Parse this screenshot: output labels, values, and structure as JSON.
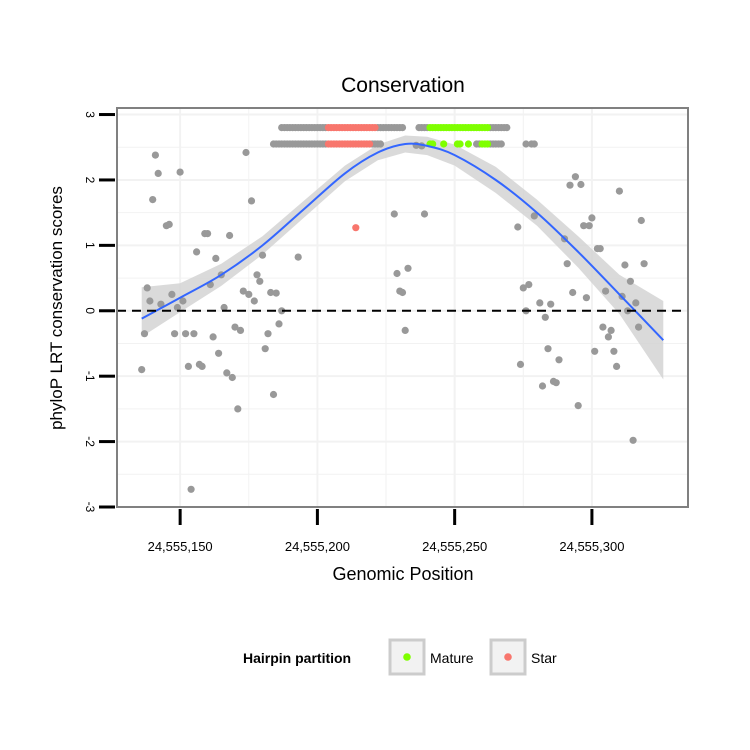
{
  "colors": {
    "point": "#999999",
    "mature": "#7FFF00",
    "star": "#F8766D",
    "smooth_line": "#3366FF",
    "ribbon": "#D3D3D3",
    "panel_border": "#808080",
    "grid": "#F2F2F2",
    "zero_line": "#000000"
  },
  "chart_data": {
    "type": "scatter",
    "title": "Conservation",
    "xlabel": "Genomic Position",
    "ylabel": "phyloP LRT conservation scores",
    "xlim": [
      24555127,
      24555335
    ],
    "ylim": [
      -3,
      3.1
    ],
    "x_ticks": [
      24555150,
      24555200,
      24555250,
      24555300
    ],
    "x_tick_labels": [
      "24,555,150",
      "24,555,200",
      "24,555,250",
      "24,555,300"
    ],
    "y_ticks": [
      -3,
      -2,
      -1,
      0,
      1,
      2,
      3
    ],
    "y_tick_labels": [
      "-3",
      "-2",
      "-1",
      "0",
      "1",
      "2",
      "3"
    ],
    "hline": 0,
    "legend": {
      "title": "Hairpin partition",
      "position": "bottom",
      "items": [
        {
          "label": "Mature",
          "color_key": "mature"
        },
        {
          "label": "Star",
          "color_key": "star"
        }
      ]
    },
    "smooth": {
      "x": [
        24555136,
        24555150,
        24555165,
        24555180,
        24555195,
        24555210,
        24555222,
        24555232,
        24555240,
        24555250,
        24555265,
        24555280,
        24555295,
        24555310,
        24555326
      ],
      "y": [
        -0.12,
        0.2,
        0.55,
        1.0,
        1.55,
        2.1,
        2.42,
        2.55,
        2.52,
        2.38,
        2.0,
        1.5,
        0.9,
        0.25,
        -0.45
      ],
      "lower": [
        -0.4,
        -0.02,
        0.38,
        0.86,
        1.42,
        1.98,
        2.3,
        2.42,
        2.38,
        2.22,
        1.8,
        1.3,
        0.66,
        -0.05,
        -1.05
      ],
      "upper": [
        0.36,
        0.42,
        0.72,
        1.14,
        1.68,
        2.22,
        2.54,
        2.68,
        2.66,
        2.54,
        2.2,
        1.7,
        1.14,
        0.55,
        0.15
      ]
    },
    "series": [
      {
        "name": "Other",
        "color_key": "point",
        "points": [
          [
            24555136,
            -0.9
          ],
          [
            24555137,
            -0.35
          ],
          [
            24555138,
            0.35
          ],
          [
            24555139,
            0.15
          ],
          [
            24555140,
            1.7
          ],
          [
            24555141,
            2.38
          ],
          [
            24555142,
            2.1
          ],
          [
            24555143,
            0.1
          ],
          [
            24555145,
            1.3
          ],
          [
            24555146,
            1.32
          ],
          [
            24555147,
            0.25
          ],
          [
            24555148,
            -0.35
          ],
          [
            24555149,
            0.05
          ],
          [
            24555150,
            2.12
          ],
          [
            24555151,
            0.15
          ],
          [
            24555152,
            -0.35
          ],
          [
            24555153,
            -0.85
          ],
          [
            24555154,
            -2.73
          ],
          [
            24555155,
            -0.35
          ],
          [
            24555156,
            0.9
          ],
          [
            24555157,
            -0.82
          ],
          [
            24555158,
            -0.85
          ],
          [
            24555159,
            1.18
          ],
          [
            24555160,
            1.18
          ],
          [
            24555161,
            0.4
          ],
          [
            24555162,
            -0.4
          ],
          [
            24555163,
            0.8
          ],
          [
            24555164,
            -0.65
          ],
          [
            24555165,
            0.55
          ],
          [
            24555166,
            0.05
          ],
          [
            24555167,
            -0.95
          ],
          [
            24555168,
            1.15
          ],
          [
            24555169,
            -1.02
          ],
          [
            24555170,
            -0.25
          ],
          [
            24555171,
            -1.5
          ],
          [
            24555172,
            -0.3
          ],
          [
            24555173,
            0.3
          ],
          [
            24555174,
            2.42
          ],
          [
            24555175,
            0.25
          ],
          [
            24555176,
            1.68
          ],
          [
            24555177,
            0.15
          ],
          [
            24555178,
            0.55
          ],
          [
            24555179,
            0.45
          ],
          [
            24555180,
            0.85
          ],
          [
            24555181,
            -0.58
          ],
          [
            24555182,
            -0.35
          ],
          [
            24555183,
            0.28
          ],
          [
            24555184,
            -1.28
          ],
          [
            24555185,
            0.27
          ],
          [
            24555186,
            -0.2
          ],
          [
            24555187,
            0.0
          ],
          [
            24555193,
            0.82
          ],
          [
            24555228,
            1.48
          ],
          [
            24555229,
            0.57
          ],
          [
            24555230,
            0.3
          ],
          [
            24555231,
            0.28
          ],
          [
            24555232,
            -0.3
          ],
          [
            24555233,
            0.65
          ],
          [
            24555236,
            2.53
          ],
          [
            24555238,
            2.52
          ],
          [
            24555239,
            1.48
          ],
          [
            24555273,
            1.28
          ],
          [
            24555274,
            -0.82
          ],
          [
            24555275,
            0.35
          ],
          [
            24555276,
            0.0
          ],
          [
            24555277,
            0.4
          ],
          [
            24555279,
            1.45
          ],
          [
            24555281,
            0.12
          ],
          [
            24555282,
            -1.15
          ],
          [
            24555283,
            -0.1
          ],
          [
            24555284,
            -0.58
          ],
          [
            24555285,
            0.1
          ],
          [
            24555286,
            -1.08
          ],
          [
            24555287,
            -1.1
          ],
          [
            24555288,
            -0.75
          ],
          [
            24555290,
            1.1
          ],
          [
            24555291,
            0.72
          ],
          [
            24555292,
            1.92
          ],
          [
            24555293,
            0.28
          ],
          [
            24555294,
            2.05
          ],
          [
            24555295,
            -1.45
          ],
          [
            24555296,
            1.93
          ],
          [
            24555297,
            1.3
          ],
          [
            24555298,
            0.2
          ],
          [
            24555299,
            1.3
          ],
          [
            24555300,
            1.42
          ],
          [
            24555301,
            -0.62
          ],
          [
            24555302,
            0.95
          ],
          [
            24555303,
            0.95
          ],
          [
            24555304,
            -0.25
          ],
          [
            24555305,
            0.3
          ],
          [
            24555306,
            -0.4
          ],
          [
            24555307,
            -0.3
          ],
          [
            24555308,
            -0.62
          ],
          [
            24555309,
            -0.85
          ],
          [
            24555310,
            1.83
          ],
          [
            24555311,
            0.22
          ],
          [
            24555312,
            0.7
          ],
          [
            24555313,
            0.0
          ],
          [
            24555314,
            0.45
          ],
          [
            24555315,
            -1.98
          ],
          [
            24555316,
            0.12
          ],
          [
            24555317,
            -0.25
          ],
          [
            24555318,
            1.38
          ],
          [
            24555319,
            0.72
          ],
          [
            24555187,
            2.8
          ],
          [
            24555188,
            2.8
          ],
          [
            24555189,
            2.8
          ],
          [
            24555190,
            2.8
          ],
          [
            24555191,
            2.8
          ],
          [
            24555192,
            2.8
          ],
          [
            24555193,
            2.8
          ],
          [
            24555194,
            2.8
          ],
          [
            24555195,
            2.8
          ],
          [
            24555196,
            2.8
          ],
          [
            24555197,
            2.8
          ],
          [
            24555198,
            2.8
          ],
          [
            24555199,
            2.8
          ],
          [
            24555200,
            2.8
          ],
          [
            24555201,
            2.8
          ],
          [
            24555202,
            2.8
          ],
          [
            24555203,
            2.8
          ],
          [
            24555222,
            2.8
          ],
          [
            24555223,
            2.8
          ],
          [
            24555224,
            2.8
          ],
          [
            24555225,
            2.8
          ],
          [
            24555226,
            2.8
          ],
          [
            24555227,
            2.8
          ],
          [
            24555228,
            2.8
          ],
          [
            24555229,
            2.8
          ],
          [
            24555230,
            2.8
          ],
          [
            24555231,
            2.8
          ],
          [
            24555237,
            2.8
          ],
          [
            24555238,
            2.8
          ],
          [
            24555239,
            2.8
          ],
          [
            24555240,
            2.8
          ],
          [
            24555263,
            2.8
          ],
          [
            24555264,
            2.8
          ],
          [
            24555265,
            2.8
          ],
          [
            24555266,
            2.8
          ],
          [
            24555267,
            2.8
          ],
          [
            24555268,
            2.8
          ],
          [
            24555269,
            2.8
          ],
          [
            24555184,
            2.55
          ],
          [
            24555185,
            2.55
          ],
          [
            24555186,
            2.55
          ],
          [
            24555187,
            2.55
          ],
          [
            24555188,
            2.55
          ],
          [
            24555189,
            2.55
          ],
          [
            24555190,
            2.55
          ],
          [
            24555191,
            2.55
          ],
          [
            24555192,
            2.55
          ],
          [
            24555193,
            2.55
          ],
          [
            24555194,
            2.55
          ],
          [
            24555195,
            2.55
          ],
          [
            24555196,
            2.55
          ],
          [
            24555197,
            2.55
          ],
          [
            24555198,
            2.55
          ],
          [
            24555199,
            2.55
          ],
          [
            24555200,
            2.55
          ],
          [
            24555201,
            2.55
          ],
          [
            24555202,
            2.55
          ],
          [
            24555203,
            2.55
          ],
          [
            24555220,
            2.55
          ],
          [
            24555221,
            2.55
          ],
          [
            24555222,
            2.55
          ],
          [
            24555223,
            2.55
          ],
          [
            24555258,
            2.55
          ],
          [
            24555259,
            2.55
          ],
          [
            24555263,
            2.55
          ],
          [
            24555264,
            2.55
          ],
          [
            24555265,
            2.55
          ],
          [
            24555266,
            2.55
          ],
          [
            24555267,
            2.55
          ],
          [
            24555276,
            2.55
          ],
          [
            24555278,
            2.55
          ],
          [
            24555279,
            2.55
          ]
        ]
      },
      {
        "name": "Mature",
        "color_key": "mature",
        "points": [
          [
            24555241,
            2.8
          ],
          [
            24555242,
            2.8
          ],
          [
            24555243,
            2.8
          ],
          [
            24555244,
            2.8
          ],
          [
            24555245,
            2.8
          ],
          [
            24555246,
            2.8
          ],
          [
            24555247,
            2.8
          ],
          [
            24555248,
            2.8
          ],
          [
            24555249,
            2.8
          ],
          [
            24555250,
            2.8
          ],
          [
            24555251,
            2.8
          ],
          [
            24555252,
            2.8
          ],
          [
            24555253,
            2.8
          ],
          [
            24555254,
            2.8
          ],
          [
            24555255,
            2.8
          ],
          [
            24555256,
            2.8
          ],
          [
            24555257,
            2.8
          ],
          [
            24555258,
            2.8
          ],
          [
            24555259,
            2.8
          ],
          [
            24555260,
            2.8
          ],
          [
            24555261,
            2.8
          ],
          [
            24555262,
            2.8
          ],
          [
            24555241,
            2.55
          ],
          [
            24555242,
            2.55
          ],
          [
            24555246,
            2.55
          ],
          [
            24555251,
            2.55
          ],
          [
            24555252,
            2.55
          ],
          [
            24555255,
            2.55
          ],
          [
            24555260,
            2.55
          ],
          [
            24555261,
            2.55
          ],
          [
            24555262,
            2.55
          ]
        ]
      },
      {
        "name": "Star",
        "color_key": "star",
        "points": [
          [
            24555204,
            2.8
          ],
          [
            24555205,
            2.8
          ],
          [
            24555206,
            2.8
          ],
          [
            24555207,
            2.8
          ],
          [
            24555208,
            2.8
          ],
          [
            24555209,
            2.8
          ],
          [
            24555210,
            2.8
          ],
          [
            24555211,
            2.8
          ],
          [
            24555212,
            2.8
          ],
          [
            24555213,
            2.8
          ],
          [
            24555214,
            2.8
          ],
          [
            24555215,
            2.8
          ],
          [
            24555216,
            2.8
          ],
          [
            24555217,
            2.8
          ],
          [
            24555218,
            2.8
          ],
          [
            24555219,
            2.8
          ],
          [
            24555220,
            2.8
          ],
          [
            24555221,
            2.8
          ],
          [
            24555204,
            2.55
          ],
          [
            24555205,
            2.55
          ],
          [
            24555206,
            2.55
          ],
          [
            24555207,
            2.55
          ],
          [
            24555208,
            2.55
          ],
          [
            24555209,
            2.55
          ],
          [
            24555210,
            2.55
          ],
          [
            24555211,
            2.55
          ],
          [
            24555212,
            2.55
          ],
          [
            24555213,
            2.55
          ],
          [
            24555214,
            2.55
          ],
          [
            24555215,
            2.55
          ],
          [
            24555216,
            2.55
          ],
          [
            24555217,
            2.55
          ],
          [
            24555218,
            2.55
          ],
          [
            24555219,
            2.55
          ],
          [
            24555214,
            1.27
          ]
        ]
      }
    ]
  }
}
